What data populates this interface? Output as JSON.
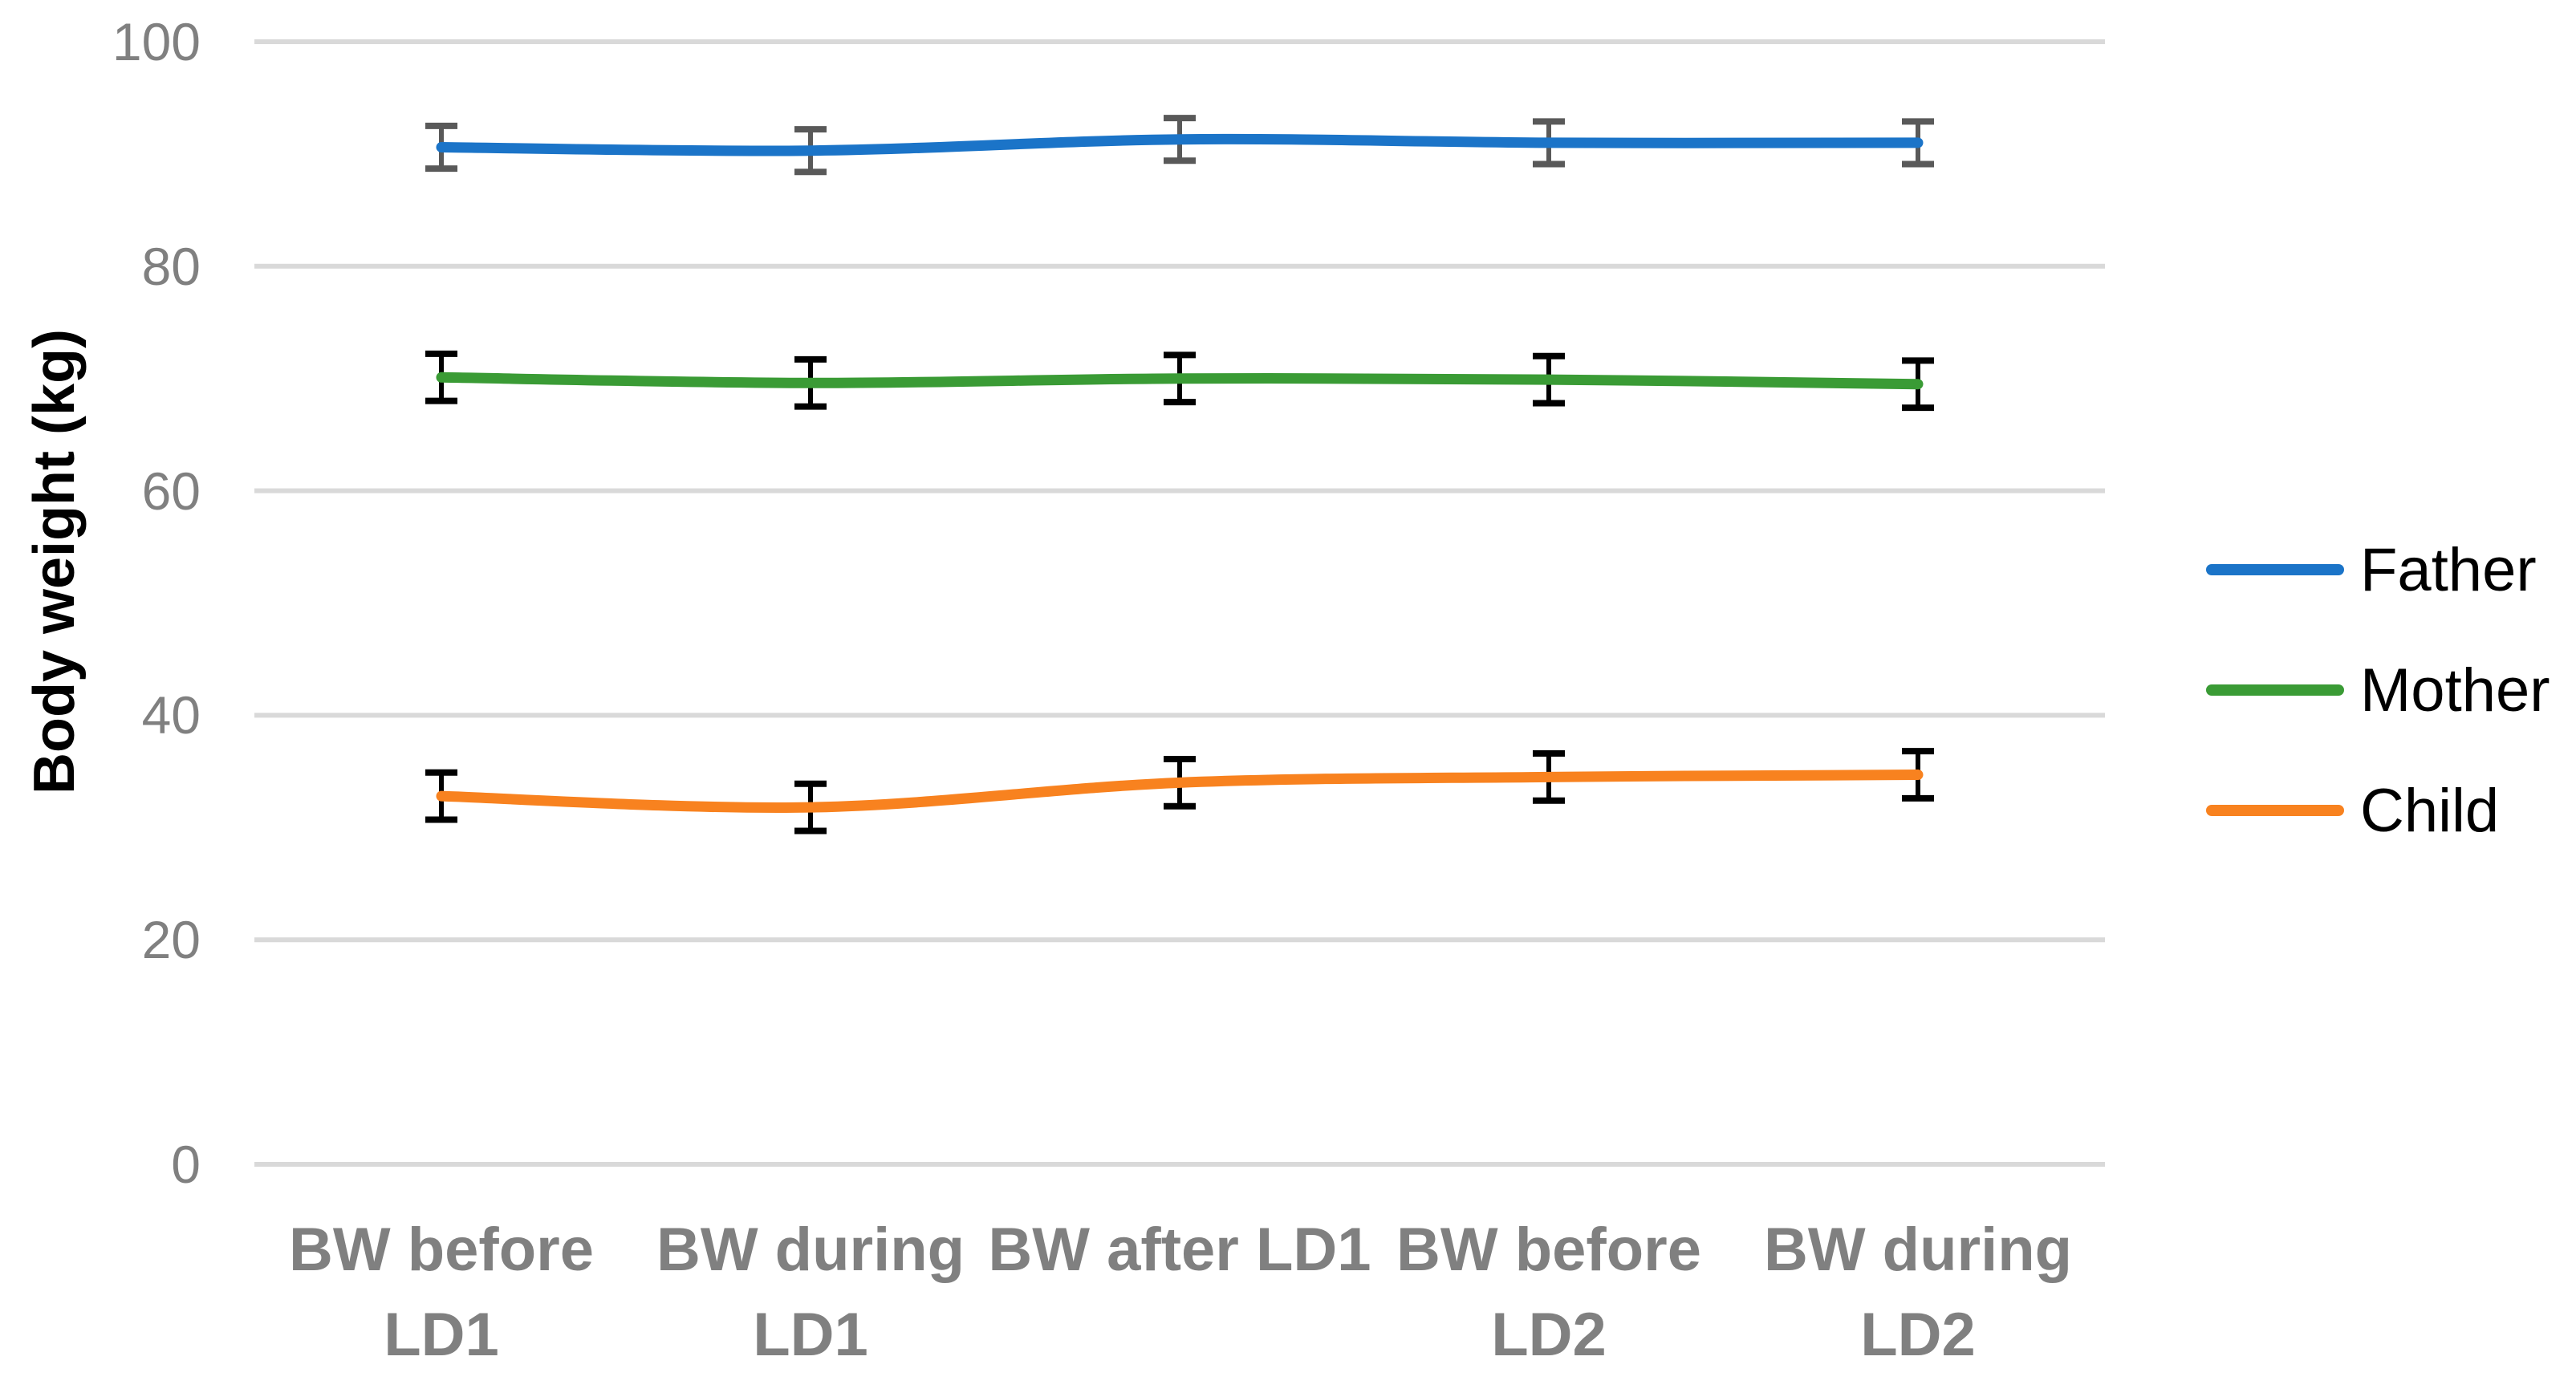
{
  "chart_data": {
    "type": "line",
    "y_axis_title": "Body weight (kg)",
    "categories": [
      "BW before LD1",
      "BW during LD1",
      "BW after LD1",
      "BW before LD2",
      "BW during LD2"
    ],
    "category_label_lines": [
      [
        "BW before",
        "LD1"
      ],
      [
        "BW during",
        "LD1"
      ],
      [
        "BW after LD1"
      ],
      [
        "BW before",
        "LD2"
      ],
      [
        "BW during",
        "LD2"
      ]
    ],
    "series": [
      {
        "name": "Father",
        "color": "#1B74C8",
        "error_color": "#595959",
        "values": [
          90.6,
          90.3,
          91.3,
          91.0,
          91.0
        ],
        "error": 1.9
      },
      {
        "name": "Mother",
        "color": "#3A9B35",
        "error_color": "#000000",
        "values": [
          70.1,
          69.6,
          70.0,
          69.9,
          69.5
        ],
        "error": 2.1
      },
      {
        "name": "Child",
        "color": "#F8821F",
        "error_color": "#000000",
        "values": [
          32.8,
          31.8,
          34.0,
          34.5,
          34.7
        ],
        "error": 2.1
      }
    ],
    "y_ticks": [
      100,
      80,
      60,
      40,
      20,
      0
    ],
    "ylim": [
      0,
      100
    ],
    "grid": "horizontal",
    "grid_color": "#D9D9D9",
    "tick_label_color": "#808080",
    "axis_title_color": "#000000",
    "legend_position": "right",
    "legend_text_color": "#000000"
  }
}
